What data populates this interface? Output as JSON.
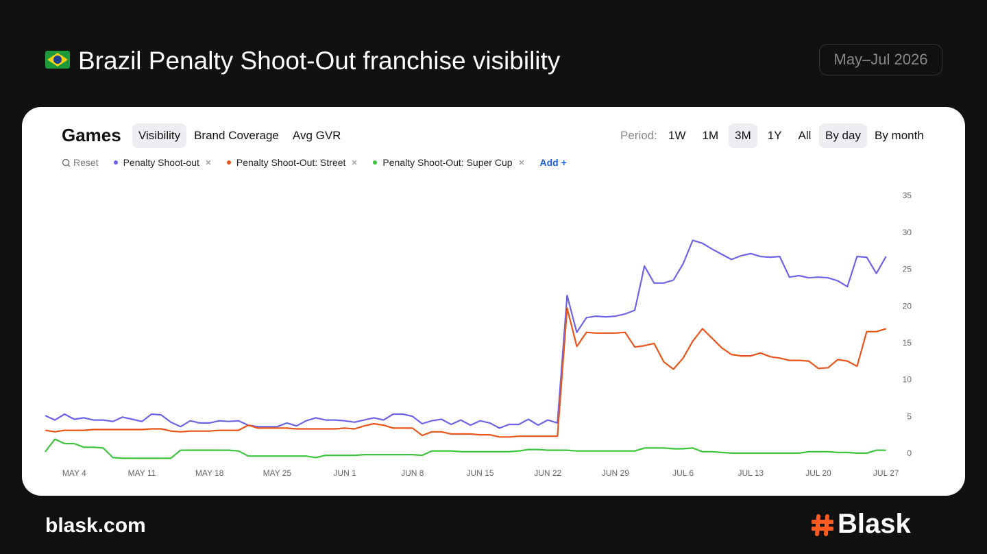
{
  "header": {
    "title": "Brazil Penalty Shoot-Out franchise visibility",
    "period_badge": "May–Jul 2026"
  },
  "toolbar": {
    "section": "Games",
    "tabs": [
      "Visibility",
      "Brand Coverage",
      "Avg GVR"
    ],
    "active_tab": 0,
    "period_label": "Period:",
    "periods": [
      "1W",
      "1M",
      "3M",
      "1Y",
      "All"
    ],
    "active_period": 2,
    "granularity": [
      "By day",
      "By month"
    ],
    "active_granularity": 0,
    "reset": "Reset",
    "add": "Add +"
  },
  "footer": {
    "site": "blask.com",
    "brand": "Blask"
  },
  "chart_data": {
    "type": "line",
    "categories": [
      null,
      null,
      null,
      "MAY 4",
      null,
      null,
      null,
      null,
      null,
      null,
      "MAY 11",
      null,
      null,
      null,
      null,
      null,
      null,
      "MAY 18",
      null,
      null,
      null,
      null,
      null,
      null,
      "MAY 25",
      null,
      null,
      null,
      null,
      null,
      null,
      "JUN 1",
      null,
      null,
      null,
      null,
      null,
      null,
      "JUN 8",
      null,
      null,
      null,
      null,
      null,
      null,
      "JUN 15",
      null,
      null,
      null,
      null,
      null,
      null,
      "JUN 22",
      null,
      null,
      null,
      null,
      null,
      null,
      "JUN 29",
      null,
      null,
      null,
      null,
      null,
      null,
      "JUL 6",
      null,
      null,
      null,
      null,
      null,
      null,
      "JUL 13",
      null,
      null,
      null,
      null,
      null,
      null,
      "JUL 20",
      null,
      null,
      null,
      null,
      null,
      null,
      "JUL 27"
    ],
    "series": [
      {
        "name": "Penalty Shoot-out",
        "color": "#6c63e8",
        "values": [
          5.2,
          4.6,
          5.4,
          4.7,
          4.9,
          4.6,
          4.6,
          4.4,
          5.0,
          4.7,
          4.4,
          5.4,
          5.3,
          4.3,
          3.7,
          4.5,
          4.2,
          4.2,
          4.5,
          4.4,
          4.5,
          3.9,
          3.7,
          3.7,
          3.7,
          4.2,
          3.8,
          4.5,
          4.9,
          4.6,
          4.6,
          4.5,
          4.3,
          4.6,
          4.9,
          4.6,
          5.4,
          5.4,
          5.1,
          4.1,
          4.5,
          4.7,
          4.0,
          4.6,
          3.9,
          4.5,
          4.2,
          3.5,
          4.0,
          4.0,
          4.7,
          3.9,
          4.6,
          4.2,
          21.5,
          16.5,
          18.5,
          18.7,
          18.6,
          18.7,
          19.0,
          19.5,
          25.5,
          23.2,
          23.2,
          23.6,
          25.8,
          29.0,
          28.6,
          27.8,
          27.1,
          26.4,
          26.9,
          27.2,
          26.8,
          26.7,
          26.8,
          24.0,
          24.2,
          23.9,
          24.0,
          23.9,
          23.5,
          22.7,
          26.8,
          26.7,
          24.5,
          26.8
        ]
      },
      {
        "name": "Penalty Shoot-Out: Street",
        "color": "#e8541a",
        "values": [
          3.2,
          3.0,
          3.2,
          3.2,
          3.2,
          3.3,
          3.3,
          3.3,
          3.3,
          3.3,
          3.3,
          3.4,
          3.4,
          3.1,
          3.0,
          3.1,
          3.1,
          3.1,
          3.2,
          3.2,
          3.2,
          3.9,
          3.5,
          3.5,
          3.5,
          3.5,
          3.4,
          3.4,
          3.4,
          3.4,
          3.4,
          3.5,
          3.4,
          3.8,
          4.1,
          3.9,
          3.5,
          3.5,
          3.5,
          2.5,
          3.0,
          3.0,
          2.7,
          2.7,
          2.7,
          2.6,
          2.6,
          2.3,
          2.3,
          2.4,
          2.4,
          2.4,
          2.4,
          2.4,
          19.8,
          14.6,
          16.5,
          16.4,
          16.4,
          16.4,
          16.5,
          14.5,
          14.7,
          15.0,
          12.5,
          11.5,
          13.0,
          15.3,
          17.0,
          15.7,
          14.4,
          13.5,
          13.3,
          13.3,
          13.7,
          13.2,
          13.0,
          12.7,
          12.7,
          12.6,
          11.6,
          11.7,
          12.8,
          12.6,
          11.9,
          16.6,
          16.6,
          17.0
        ]
      },
      {
        "name": "Penalty Shoot-Out: Super Cup",
        "color": "#3cc43c",
        "values": [
          0.3,
          2.0,
          1.4,
          1.4,
          0.9,
          0.9,
          0.8,
          -0.5,
          -0.6,
          -0.6,
          -0.6,
          -0.6,
          -0.6,
          -0.6,
          0.5,
          0.5,
          0.5,
          0.5,
          0.5,
          0.5,
          0.4,
          -0.3,
          -0.3,
          -0.3,
          -0.3,
          -0.3,
          -0.3,
          -0.3,
          -0.5,
          -0.2,
          -0.2,
          -0.2,
          -0.2,
          -0.1,
          -0.1,
          -0.1,
          -0.1,
          -0.1,
          -0.1,
          -0.2,
          0.4,
          0.4,
          0.4,
          0.3,
          0.3,
          0.3,
          0.3,
          0.3,
          0.3,
          0.4,
          0.6,
          0.6,
          0.5,
          0.5,
          0.5,
          0.4,
          0.4,
          0.4,
          0.4,
          0.4,
          0.4,
          0.4,
          0.8,
          0.8,
          0.8,
          0.7,
          0.7,
          0.8,
          0.3,
          0.3,
          0.2,
          0.1,
          0.1,
          0.1,
          0.1,
          0.1,
          0.1,
          0.1,
          0.1,
          0.3,
          0.3,
          0.3,
          0.2,
          0.2,
          0.1,
          0.1,
          0.5,
          0.5
        ]
      }
    ],
    "ylim": [
      0,
      35
    ],
    "yticks": [
      0,
      5,
      10,
      15,
      20,
      25,
      30,
      35
    ],
    "y_axis_side": "right",
    "grid": false
  }
}
